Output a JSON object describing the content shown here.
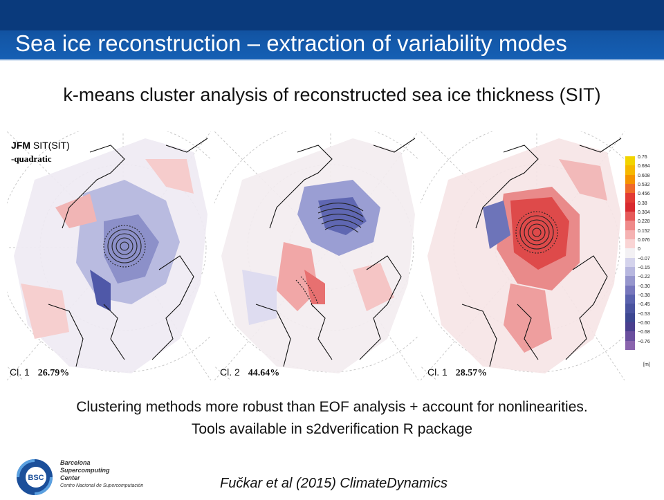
{
  "header": {
    "title": "Sea ice reconstruction – extraction of variability modes"
  },
  "subtitle": "k-means cluster analysis of reconstructed sea ice thickness (SIT)",
  "figure": {
    "season_label": "JFM",
    "variable_label": "SIT(SIT)",
    "detrend_label": "-quadratic",
    "panels": [
      {
        "cluster": "Cl. 1",
        "percent": "26.79%"
      },
      {
        "cluster": "Cl. 2",
        "percent": "44.64%"
      },
      {
        "cluster": "Cl. 1",
        "percent": "28.57%"
      }
    ],
    "colorbar": {
      "ticks": [
        "0.76",
        "0.684",
        "0.608",
        "0.532",
        "0.456",
        "0.38",
        "0.304",
        "0.228",
        "0.152",
        "0.076",
        "0",
        "−0.07",
        "−0.15",
        "−0.22",
        "−0.30",
        "−0.38",
        "−0.45",
        "−0.53",
        "−0.60",
        "−0.68",
        "−0.76"
      ],
      "unit": "[m]",
      "colors": [
        "#f2d400",
        "#f6b800",
        "#f59300",
        "#ef6a2a",
        "#e23b34",
        "#d82a2f",
        "#e65a5a",
        "#ef8a8a",
        "#f5b2b2",
        "#f9d4d4",
        "#f3f1f4",
        "#d4d3ec",
        "#b7b7df",
        "#9696cd",
        "#7777bd",
        "#5a62ae",
        "#4a539f",
        "#3d4791",
        "#4a3f8e",
        "#6a4f9e",
        "#8a64ad"
      ]
    }
  },
  "body_lines": [
    "Clustering methods more robust than EOF analysis + account for nonlinearities.",
    "Tools available in s2dverification R package"
  ],
  "logo": {
    "badge": "BSC",
    "line1": "Barcelona",
    "line2": "Supercomputing",
    "line3": "Center",
    "line4": "Centro Nacional de Supercomputación"
  },
  "citation": "Fučkar et al (2015) ClimateDynamics"
}
